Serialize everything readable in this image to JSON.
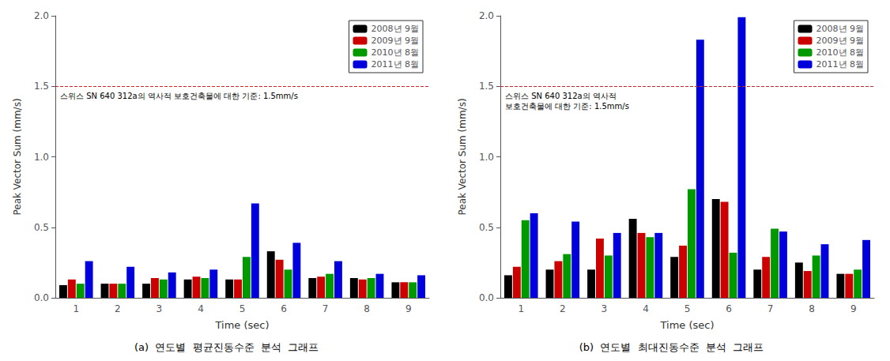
{
  "chart_data": [
    {
      "type": "bar",
      "title": "(a)  연도별  평균진동수준  분석  그래프",
      "xlabel": "Time (sec)",
      "ylabel": "Peak Vector Sum (mm/s)",
      "annotation": "스위스 SN 640 312a의 역사적 보호건축물에 대한 기준: 1.5mm/s",
      "hline": 1.5,
      "categories": [
        1,
        2,
        3,
        4,
        5,
        6,
        7,
        8,
        9
      ],
      "ylim": [
        0,
        2.0
      ],
      "yticks": [
        {
          "value": 0,
          "label": "0.0"
        },
        {
          "value": 0.5,
          "label": "0.5"
        },
        {
          "value": 1,
          "label": "1.0"
        },
        {
          "value": 1.5,
          "label": "1.5"
        },
        {
          "value": 2,
          "label": "2.0"
        }
      ],
      "grid": false,
      "legend": "upper right",
      "series": [
        {
          "name": "2008년 9월",
          "color": "#000000",
          "values": [
            0.09,
            0.1,
            0.1,
            0.13,
            0.13,
            0.33,
            0.14,
            0.14,
            0.11
          ]
        },
        {
          "name": "2009년 9월",
          "color": "#cc0000",
          "values": [
            0.13,
            0.1,
            0.14,
            0.15,
            0.13,
            0.27,
            0.15,
            0.13,
            0.11
          ]
        },
        {
          "name": "2010년 8월",
          "color": "#009900",
          "values": [
            0.1,
            0.1,
            0.13,
            0.14,
            0.29,
            0.2,
            0.17,
            0.14,
            0.11
          ]
        },
        {
          "name": "2011년 8월",
          "color": "#0000dd",
          "values": [
            0.26,
            0.22,
            0.18,
            0.2,
            0.67,
            0.39,
            0.26,
            0.17,
            0.16
          ]
        }
      ]
    },
    {
      "type": "bar",
      "title": "(b)  연도별  최대진동수준  분석  그래프",
      "xlabel": "Time (sec)",
      "ylabel": "Peak Vector Sum (mm/s)",
      "annotation": "스위스 SN 640 312a의 역사적\n보호건축물에 대한 기준: 1.5mm/s",
      "hline": 1.5,
      "categories": [
        1,
        2,
        3,
        4,
        5,
        6,
        7,
        8,
        9
      ],
      "ylim": [
        0,
        2.0
      ],
      "yticks": [
        {
          "value": 0,
          "label": "0.0"
        },
        {
          "value": 0.5,
          "label": "0.5"
        },
        {
          "value": 1,
          "label": "1.0"
        },
        {
          "value": 1.5,
          "label": "1.5"
        },
        {
          "value": 2,
          "label": "2.0"
        }
      ],
      "grid": false,
      "legend": "upper right",
      "series": [
        {
          "name": "2008년 9월",
          "color": "#000000",
          "values": [
            0.16,
            0.2,
            0.2,
            0.56,
            0.29,
            0.7,
            0.2,
            0.25,
            0.17
          ]
        },
        {
          "name": "2009년 9월",
          "color": "#cc0000",
          "values": [
            0.22,
            0.26,
            0.42,
            0.46,
            0.37,
            0.68,
            0.29,
            0.19,
            0.17
          ]
        },
        {
          "name": "2010년 8월",
          "color": "#009900",
          "values": [
            0.55,
            0.31,
            0.3,
            0.43,
            0.77,
            0.32,
            0.49,
            0.3,
            0.2
          ]
        },
        {
          "name": "2011년 8월",
          "color": "#0000dd",
          "values": [
            0.6,
            0.54,
            0.46,
            0.46,
            1.83,
            1.99,
            0.47,
            0.38,
            0.41
          ]
        }
      ]
    }
  ]
}
